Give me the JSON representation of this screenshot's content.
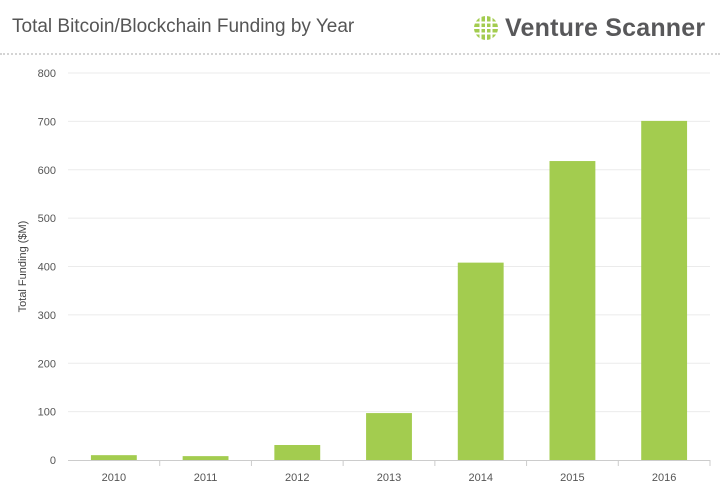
{
  "header": {
    "title": "Total Bitcoin/Blockchain Funding by Year",
    "brand": "Venture Scanner",
    "brand_icon": "venture-scanner-logo-icon"
  },
  "colors": {
    "bar": "#a3cc4f",
    "grid": "#ebebeb",
    "axis": "#cccccc",
    "text": "#555555",
    "brand_green": "#a3cc4f"
  },
  "chart_data": {
    "type": "bar",
    "title": "Total Bitcoin/Blockchain Funding by Year",
    "xlabel": "",
    "ylabel": "Total Funding ($M)",
    "categories": [
      "2010",
      "2011",
      "2012",
      "2013",
      "2014",
      "2015",
      "2016"
    ],
    "values": [
      10,
      8,
      31,
      97,
      408,
      618,
      701
    ],
    "ylim": [
      0,
      800
    ],
    "yticks": [
      "0",
      "100",
      "200",
      "300",
      "400",
      "500",
      "600",
      "700",
      "800"
    ],
    "grid": true,
    "legend": false
  }
}
